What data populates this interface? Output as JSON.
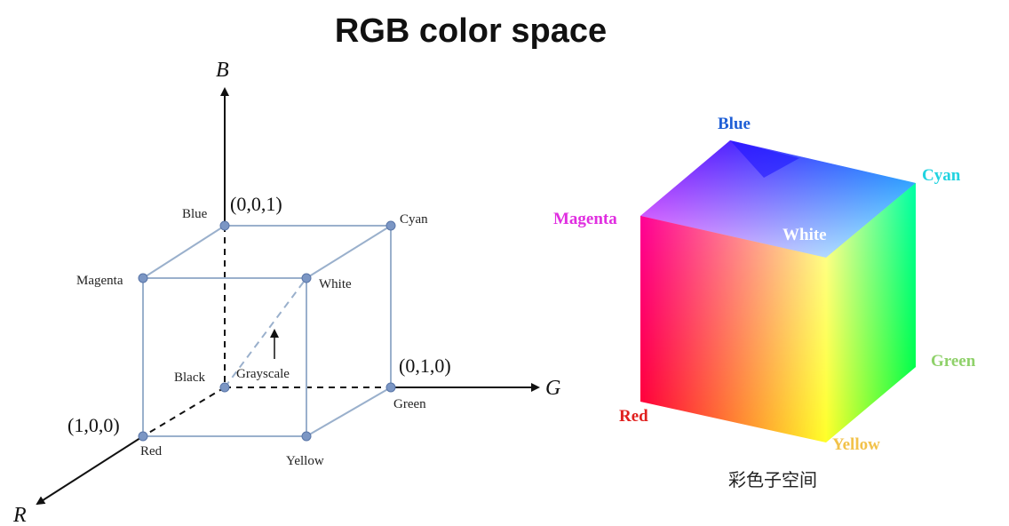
{
  "title": "RGB color space",
  "left_diagram": {
    "axes": {
      "b": "B",
      "g": "G",
      "r": "R"
    },
    "coords": {
      "blue": "(0,0,1)",
      "green": "(0,1,0)",
      "red": "(1,0,0)"
    },
    "vertex_labels": {
      "blue": "Blue",
      "cyan": "Cyan",
      "magenta": "Magenta",
      "white": "White",
      "black": "Black",
      "grayscale": "Grayscale",
      "green": "Green",
      "red": "Red",
      "yellow": "Yellow"
    }
  },
  "right_cube": {
    "labels": {
      "blue": "Blue",
      "cyan": "Cyan",
      "magenta": "Magenta",
      "white": "White",
      "green": "Green",
      "red": "Red",
      "yellow": "Yellow"
    },
    "label_colors": {
      "blue": "#1f5fd6",
      "cyan": "#22d3e0",
      "magenta": "#e02ee0",
      "white": "#ffffff",
      "green": "#8fd16a",
      "red": "#e0201e",
      "yellow": "#f2c24a"
    },
    "caption": "彩色子空间"
  }
}
